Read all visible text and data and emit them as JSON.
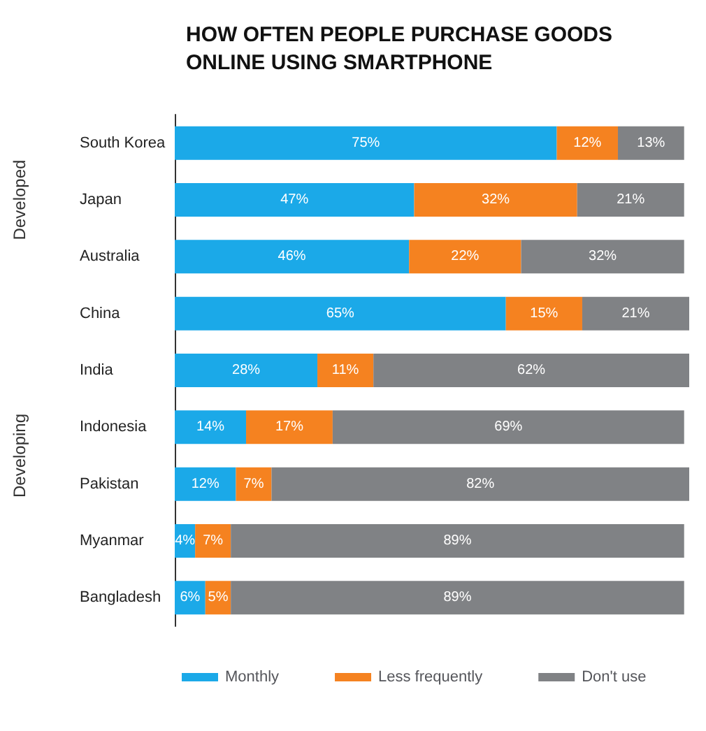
{
  "chart_data": {
    "type": "bar",
    "orientation": "horizontal",
    "stacked": true,
    "title": "HOW OFTEN PEOPLE PURCHASE GOODS\nONLINE USING SMARTPHONE",
    "categories": [
      "South Korea",
      "Japan",
      "Australia",
      "China",
      "India",
      "Indonesia",
      "Pakistan",
      "Myanmar",
      "Bangladesh"
    ],
    "series": [
      {
        "name": "Monthly",
        "color": "#1ba9e8",
        "values": [
          75,
          47,
          46,
          65,
          28,
          14,
          12,
          4,
          6
        ],
        "value_labels": [
          "75%",
          "47%",
          "46%",
          "65%",
          "28%",
          "14%",
          "12%",
          "4%",
          "6%"
        ]
      },
      {
        "name": "Less frequently",
        "color": "#f58220",
        "values": [
          12,
          32,
          22,
          15,
          11,
          17,
          7,
          7,
          5
        ],
        "value_labels": [
          "12%",
          "32%",
          "22%",
          "15%",
          "11%",
          "17%",
          "7%",
          "7%",
          "5%"
        ]
      },
      {
        "name": "Don't use",
        "color": "#808285",
        "values": [
          13,
          21,
          32,
          21,
          62,
          69,
          82,
          89,
          89
        ],
        "value_labels": [
          "13%",
          "21%",
          "32%",
          "21%",
          "62%",
          "69%",
          "82%",
          "89%",
          "89%"
        ]
      }
    ],
    "annotations": [
      "Developed",
      "Developing"
    ],
    "grid": false,
    "legend": "bottom"
  }
}
